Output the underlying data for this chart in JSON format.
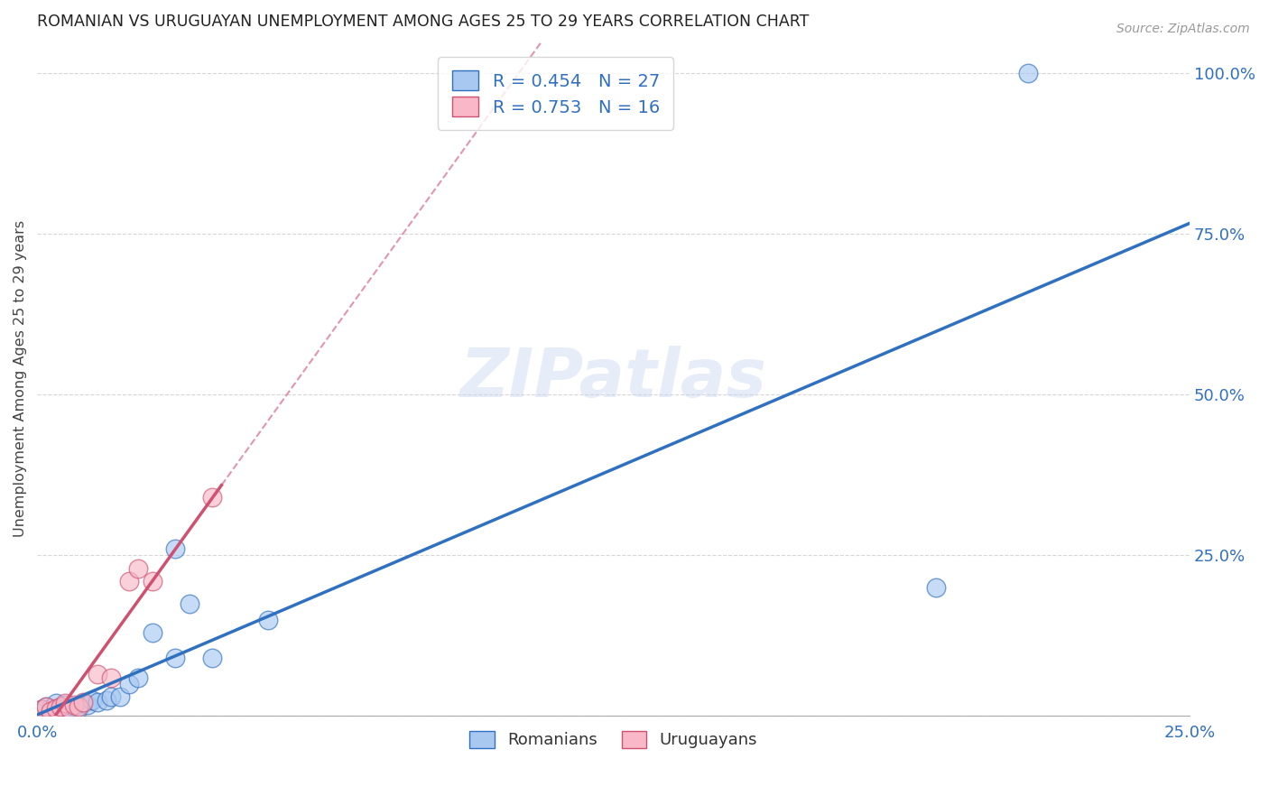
{
  "title": "ROMANIAN VS URUGUAYAN UNEMPLOYMENT AMONG AGES 25 TO 29 YEARS CORRELATION CHART",
  "source": "Source: ZipAtlas.com",
  "ylabel": "Unemployment Among Ages 25 to 29 years",
  "xlabel": "",
  "xlim": [
    0.0,
    0.25
  ],
  "ylim": [
    0.0,
    1.05
  ],
  "xticks": [
    0.0,
    0.05,
    0.1,
    0.15,
    0.2,
    0.25
  ],
  "yticks": [
    0.0,
    0.25,
    0.5,
    0.75,
    1.0
  ],
  "xticklabels": [
    "0.0%",
    "",
    "",
    "",
    "",
    "25.0%"
  ],
  "yticklabels_right": [
    "",
    "25.0%",
    "50.0%",
    "75.0%",
    "100.0%"
  ],
  "romanian_R": "0.454",
  "romanian_N": "27",
  "uruguayan_R": "0.753",
  "uruguayan_N": "16",
  "romanian_color": "#a8c8f0",
  "uruguayan_color": "#f8b8c8",
  "romanian_line_color": "#3070c0",
  "uruguayan_line_color": "#d05070",
  "trend_line_color": "#c0d4f0",
  "background_color": "#ffffff",
  "grid_color": "#cccccc",
  "watermark": "ZIPatlas",
  "romanian_x": [
    0.001,
    0.002,
    0.003,
    0.004,
    0.005,
    0.006,
    0.006,
    0.007,
    0.008,
    0.009,
    0.01,
    0.011,
    0.012,
    0.013,
    0.015,
    0.016,
    0.018,
    0.02,
    0.022,
    0.025,
    0.03,
    0.033,
    0.038,
    0.05,
    0.03,
    0.195,
    0.215
  ],
  "romanian_y": [
    0.01,
    0.015,
    0.012,
    0.02,
    0.008,
    0.012,
    0.018,
    0.01,
    0.015,
    0.012,
    0.02,
    0.018,
    0.025,
    0.022,
    0.025,
    0.03,
    0.03,
    0.05,
    0.06,
    0.13,
    0.09,
    0.175,
    0.09,
    0.15,
    0.26,
    0.2,
    1.0
  ],
  "uruguayan_x": [
    0.001,
    0.002,
    0.003,
    0.004,
    0.005,
    0.006,
    0.007,
    0.008,
    0.009,
    0.01,
    0.013,
    0.016,
    0.02,
    0.022,
    0.025,
    0.038
  ],
  "uruguayan_y": [
    0.01,
    0.015,
    0.008,
    0.012,
    0.015,
    0.02,
    0.012,
    0.018,
    0.015,
    0.022,
    0.065,
    0.06,
    0.21,
    0.23,
    0.21,
    0.34
  ]
}
